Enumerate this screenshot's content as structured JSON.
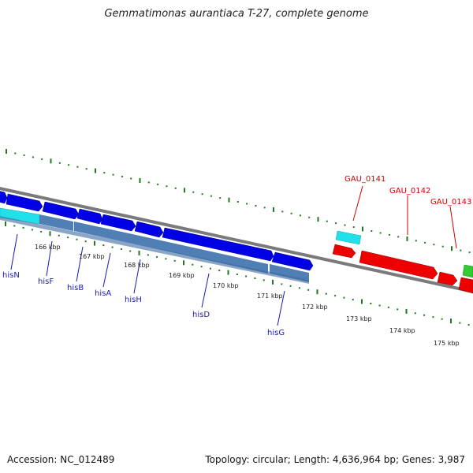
{
  "title": "Gemmatimonas aurantiaca T-27, complete genome",
  "footer": {
    "accession": "Accession: NC_012489",
    "summary": "Topology: circular; Length: 4,636,964 bp; Genes: 3,987"
  },
  "scale_labels": [
    "166 kbp",
    "167 kbp",
    "168 kbp",
    "169 kbp",
    "170 kbp",
    "171 kbp",
    "172 kbp",
    "173 kbp",
    "174 kbp",
    "175 kbp"
  ],
  "gene_labels": {
    "his": [
      "hisN",
      "hisF",
      "hisB",
      "hisA",
      "hisH",
      "hisD",
      "hisG"
    ],
    "gau": [
      "GAU_0141",
      "GAU_0142",
      "GAU_0143"
    ]
  },
  "colors": {
    "gene_blue": "#0000e6",
    "gene_red": "#ee0000",
    "gene_cyan": "#22e0ea",
    "gene_green": "#33cc33",
    "feature_steelblue": "#4f7fb5",
    "backbone": "#7a7a7a",
    "tick_green": "#1f7a1f",
    "label_blue": "#1a1ab8",
    "label_red": "#d40000"
  }
}
